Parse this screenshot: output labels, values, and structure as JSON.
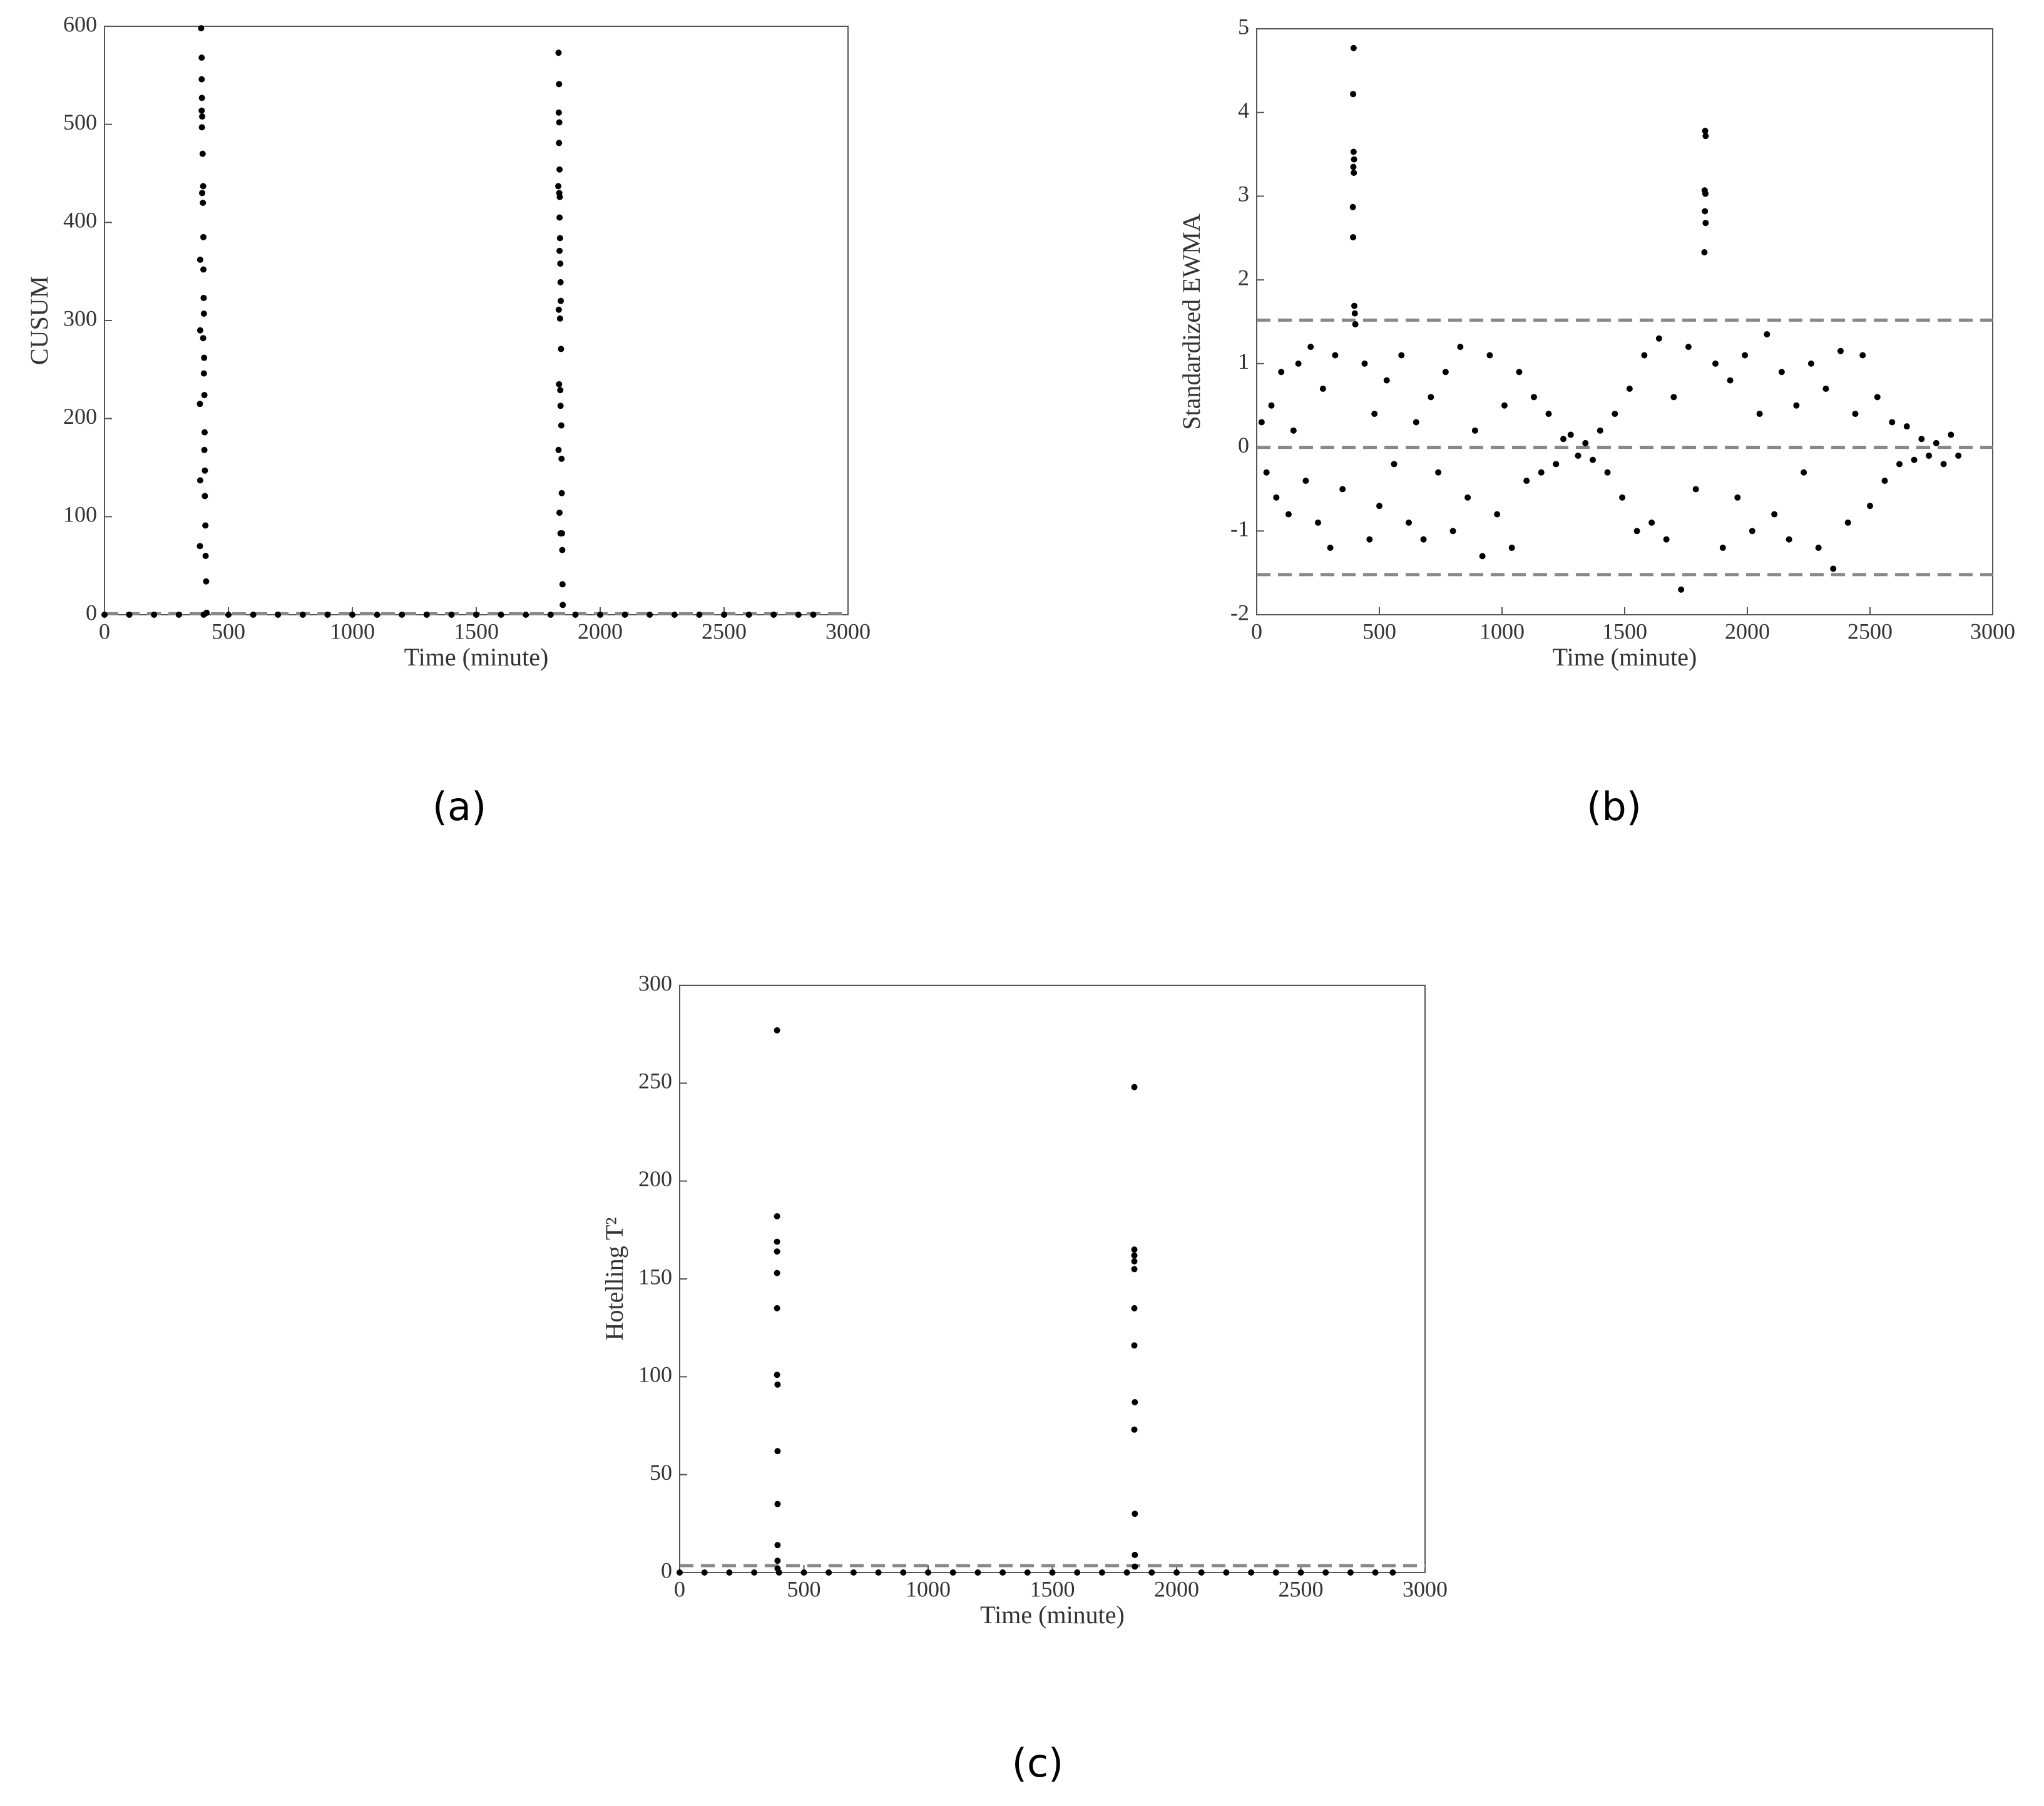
{
  "chart_data": [
    {
      "type": "scatter",
      "caption": "(a)",
      "xlabel": "Time (minute)",
      "ylabel": "CUSUM",
      "xlim": [
        0,
        3000
      ],
      "ylim": [
        0,
        600
      ],
      "xticks": [
        0,
        500,
        1000,
        1500,
        2000,
        2500,
        3000
      ],
      "yticks": [
        0,
        100,
        200,
        300,
        400,
        500,
        600
      ],
      "color": "#000000",
      "hlines": [
        1
      ],
      "hline_color": "#888888",
      "x": [
        390,
        392,
        392,
        393,
        392,
        394,
        393,
        396,
        398,
        394,
        397,
        399,
        386,
        399,
        400,
        401,
        386,
        398,
        402,
        401,
        403,
        385,
        404,
        403,
        405,
        386,
        405,
        407,
        385,
        408,
        410,
        412,
        1832,
        1834,
        1833,
        1835,
        1834,
        1836,
        1831,
        1835,
        1837,
        1836,
        1838,
        1836,
        1839,
        1840,
        1841,
        1833,
        1838,
        1842,
        1834,
        1839,
        1840,
        1843,
        1832,
        1844,
        1845,
        1836,
        1840,
        1846,
        1847,
        1848,
        1849,
        0,
        100,
        200,
        300,
        400,
        500,
        600,
        700,
        800,
        900,
        1000,
        1100,
        1200,
        1300,
        1400,
        1500,
        1600,
        1700,
        1800,
        1900,
        2000,
        2100,
        2200,
        2300,
        2400,
        2500,
        2600,
        2700,
        2800,
        2860
      ],
      "y": [
        598,
        568,
        546,
        527,
        514,
        508,
        497,
        470,
        437,
        430,
        420,
        385,
        362,
        352,
        323,
        307,
        290,
        282,
        262,
        246,
        224,
        215,
        186,
        168,
        147,
        137,
        121,
        91,
        70,
        60,
        34,
        2,
        573,
        541,
        512,
        502,
        481,
        454,
        437,
        430,
        426,
        405,
        384,
        371,
        358,
        339,
        320,
        311,
        302,
        271,
        235,
        229,
        213,
        193,
        168,
        159,
        124,
        104,
        83,
        83,
        66,
        31,
        10,
        0,
        0,
        0,
        0,
        0,
        0,
        0,
        0,
        0,
        0,
        0,
        0,
        0,
        0,
        0,
        0,
        0,
        0,
        0,
        0,
        0,
        0,
        0,
        0,
        0,
        0,
        0,
        0,
        0,
        0
      ]
    },
    {
      "type": "scatter",
      "caption": "(b)",
      "xlabel": "Time (minute)",
      "ylabel": "Standardized EWMA",
      "xlim": [
        0,
        3000
      ],
      "ylim": [
        -2,
        5
      ],
      "xticks": [
        0,
        500,
        1000,
        1500,
        2000,
        2500,
        3000
      ],
      "yticks": [
        -2,
        -1,
        0,
        1,
        2,
        3,
        4,
        5
      ],
      "color": "#000000",
      "hlines": [
        1.52,
        0,
        -1.52
      ],
      "hline_color": "#888888",
      "x": [
        20,
        40,
        60,
        80,
        100,
        130,
        150,
        170,
        200,
        220,
        250,
        270,
        300,
        320,
        350,
        440,
        460,
        480,
        500,
        530,
        560,
        590,
        620,
        650,
        680,
        710,
        740,
        770,
        800,
        830,
        860,
        890,
        920,
        950,
        980,
        1010,
        1040,
        1070,
        1100,
        1130,
        1160,
        1190,
        1220,
        1250,
        1280,
        1310,
        1340,
        1370,
        1400,
        1430,
        1460,
        1490,
        1520,
        1550,
        1580,
        1610,
        1640,
        1670,
        1700,
        1730,
        1760,
        1790,
        1870,
        1900,
        1930,
        1960,
        1990,
        2020,
        2050,
        2080,
        2110,
        2140,
        2170,
        2200,
        2230,
        2260,
        2290,
        2320,
        2350,
        2380,
        2410,
        2440,
        2470,
        2500,
        2530,
        2560,
        2590,
        2620,
        2650,
        2680,
        2710,
        2740,
        2770,
        2800,
        2830,
        2860,
        395,
        393,
        395,
        397,
        394,
        396,
        392,
        393,
        398,
        400,
        402,
        1828,
        1830,
        1826,
        1829,
        1827,
        1830,
        1825
      ],
      "y": [
        0.3,
        -0.3,
        0.5,
        -0.6,
        0.9,
        -0.8,
        0.2,
        1.0,
        -0.4,
        1.2,
        -0.9,
        0.7,
        -1.2,
        1.1,
        -0.5,
        1.0,
        -1.1,
        0.4,
        -0.7,
        0.8,
        -0.2,
        1.1,
        -0.9,
        0.3,
        -1.1,
        0.6,
        -0.3,
        0.9,
        -1.0,
        1.2,
        -0.6,
        0.2,
        -1.3,
        1.1,
        -0.8,
        0.5,
        -1.2,
        0.9,
        -0.4,
        0.6,
        -0.3,
        0.4,
        -0.2,
        0.1,
        0.15,
        -0.1,
        0.05,
        -0.15,
        0.2,
        -0.3,
        0.4,
        -0.6,
        0.7,
        -1.0,
        1.1,
        -0.9,
        1.3,
        -1.1,
        0.6,
        -1.7,
        1.2,
        -0.5,
        1.0,
        -1.2,
        0.8,
        -0.6,
        1.1,
        -1.0,
        0.4,
        1.35,
        -0.8,
        0.9,
        -1.1,
        0.5,
        -0.3,
        1.0,
        -1.2,
        0.7,
        -1.45,
        1.15,
        -0.9,
        0.4,
        1.1,
        -0.7,
        0.6,
        -0.4,
        0.3,
        -0.2,
        0.25,
        -0.15,
        0.1,
        -0.1,
        0.05,
        -0.2,
        0.15,
        -0.1,
        4.77,
        4.22,
        3.53,
        3.44,
        3.35,
        3.28,
        2.87,
        2.51,
        1.69,
        1.6,
        1.47,
        3.78,
        3.72,
        3.07,
        3.03,
        2.82,
        2.68,
        2.33
      ]
    },
    {
      "type": "scatter",
      "caption": "(c)",
      "xlabel": "Time (minute)",
      "ylabel": "Hotelling T²",
      "xlim": [
        0,
        3000
      ],
      "ylim": [
        0,
        300
      ],
      "xticks": [
        0,
        500,
        1000,
        1500,
        2000,
        2500,
        3000
      ],
      "yticks": [
        0,
        50,
        100,
        150,
        200,
        250,
        300
      ],
      "color": "#000000",
      "hlines": [
        3.5
      ],
      "hline_color": "#888888",
      "x": [
        392,
        392,
        392,
        392,
        392,
        392,
        392,
        394,
        394,
        394,
        394,
        394,
        394,
        1830,
        1830,
        1830,
        1830,
        1830,
        1830,
        1830,
        1832,
        1830,
        1832,
        1832,
        1832,
        0,
        100,
        200,
        300,
        400,
        500,
        600,
        700,
        800,
        900,
        1000,
        1100,
        1200,
        1300,
        1400,
        1500,
        1600,
        1700,
        1800,
        1900,
        2000,
        2100,
        2200,
        2300,
        2400,
        2500,
        2600,
        2700,
        2800,
        2870
      ],
      "y": [
        277,
        182,
        169,
        164,
        153,
        135,
        101,
        96,
        62,
        35,
        14,
        6,
        2,
        248,
        165,
        162,
        159,
        155,
        135,
        116,
        87,
        73,
        30,
        9,
        3,
        0,
        0,
        0,
        0,
        0,
        0,
        0,
        0,
        0,
        0,
        0,
        0,
        0,
        0,
        0,
        0,
        0,
        0,
        0,
        0,
        0,
        0,
        0,
        0,
        0,
        0,
        0,
        0,
        0,
        0
      ]
    }
  ]
}
